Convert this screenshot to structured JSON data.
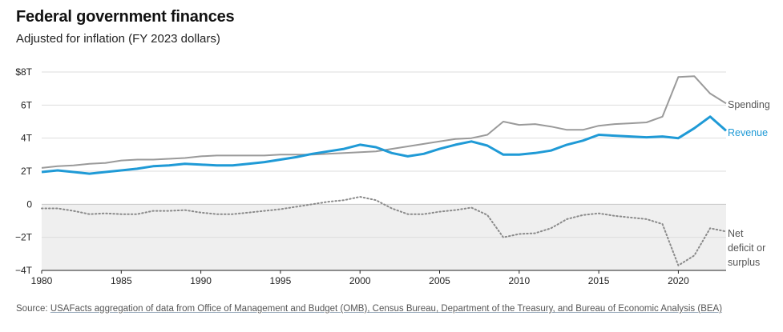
{
  "title": "Federal government finances",
  "subtitle": "Adjusted for inflation (FY 2023 dollars)",
  "source": {
    "prefix": "Source: ",
    "link_text": "USAFacts aggregation of data from Office of Management and Budget (OMB), Census Bureau, Department of the Treasury, and Bureau of Economic Analysis (BEA)"
  },
  "colors": {
    "spending": "#9a9a9a",
    "revenue": "#1f9ad6",
    "deficit": "#8a8a8a",
    "negative_band": "#efefef",
    "grid": "#dddddd"
  },
  "chart_data": {
    "type": "line",
    "xlabel": "",
    "ylabel": "",
    "ylim": [
      -4,
      8
    ],
    "xlim": [
      1980,
      2023
    ],
    "yticks": [
      -4,
      -2,
      0,
      2,
      4,
      6,
      8
    ],
    "ytick_labels": [
      "−4T",
      "−2T",
      "0",
      "2T",
      "4T",
      "6T",
      "$8T"
    ],
    "xticks": [
      1980,
      1985,
      1990,
      1995,
      2000,
      2005,
      2010,
      2015,
      2020
    ],
    "xtick_labels": [
      "1980",
      "1985",
      "1990",
      "1995",
      "2000",
      "2005",
      "2010",
      "2015",
      "2020"
    ],
    "grid": true,
    "negative_region_shaded": true,
    "x": [
      1980,
      1981,
      1982,
      1983,
      1984,
      1985,
      1986,
      1987,
      1988,
      1989,
      1990,
      1991,
      1992,
      1993,
      1994,
      1995,
      1996,
      1997,
      1998,
      1999,
      2000,
      2001,
      2002,
      2003,
      2004,
      2005,
      2006,
      2007,
      2008,
      2009,
      2010,
      2011,
      2012,
      2013,
      2014,
      2015,
      2016,
      2017,
      2018,
      2019,
      2020,
      2021,
      2022,
      2023
    ],
    "series": [
      {
        "name": "Spending",
        "style": "solid-thin",
        "values": [
          2.2,
          2.3,
          2.35,
          2.45,
          2.5,
          2.65,
          2.7,
          2.7,
          2.75,
          2.8,
          2.9,
          2.95,
          2.95,
          2.95,
          2.95,
          3.0,
          3.0,
          3.0,
          3.05,
          3.1,
          3.15,
          3.2,
          3.35,
          3.5,
          3.65,
          3.8,
          3.95,
          4.0,
          4.2,
          5.0,
          4.8,
          4.85,
          4.7,
          4.5,
          4.5,
          4.75,
          4.85,
          4.9,
          4.95,
          5.3,
          7.7,
          7.75,
          6.7,
          6.1
        ]
      },
      {
        "name": "Revenue",
        "style": "solid-thick",
        "values": [
          1.95,
          2.05,
          1.95,
          1.85,
          1.95,
          2.05,
          2.15,
          2.3,
          2.35,
          2.45,
          2.4,
          2.35,
          2.35,
          2.45,
          2.55,
          2.7,
          2.85,
          3.05,
          3.2,
          3.35,
          3.6,
          3.45,
          3.1,
          2.9,
          3.05,
          3.35,
          3.6,
          3.8,
          3.55,
          3.0,
          3.0,
          3.1,
          3.25,
          3.6,
          3.85,
          4.2,
          4.15,
          4.1,
          4.05,
          4.1,
          4.0,
          4.6,
          5.3,
          4.45
        ]
      },
      {
        "name": "Net deficit or surplus",
        "style": "dotted",
        "values": [
          -0.25,
          -0.25,
          -0.4,
          -0.6,
          -0.55,
          -0.6,
          -0.6,
          -0.4,
          -0.4,
          -0.35,
          -0.5,
          -0.6,
          -0.6,
          -0.5,
          -0.4,
          -0.3,
          -0.15,
          0.0,
          0.15,
          0.25,
          0.45,
          0.25,
          -0.25,
          -0.6,
          -0.6,
          -0.45,
          -0.35,
          -0.2,
          -0.65,
          -2.0,
          -1.8,
          -1.75,
          -1.45,
          -0.9,
          -0.65,
          -0.55,
          -0.7,
          -0.8,
          -0.9,
          -1.2,
          -3.7,
          -3.1,
          -1.45,
          -1.65
        ]
      }
    ],
    "series_labels": [
      "Spending",
      "Revenue",
      "Net",
      "deficit or",
      "surplus"
    ]
  }
}
